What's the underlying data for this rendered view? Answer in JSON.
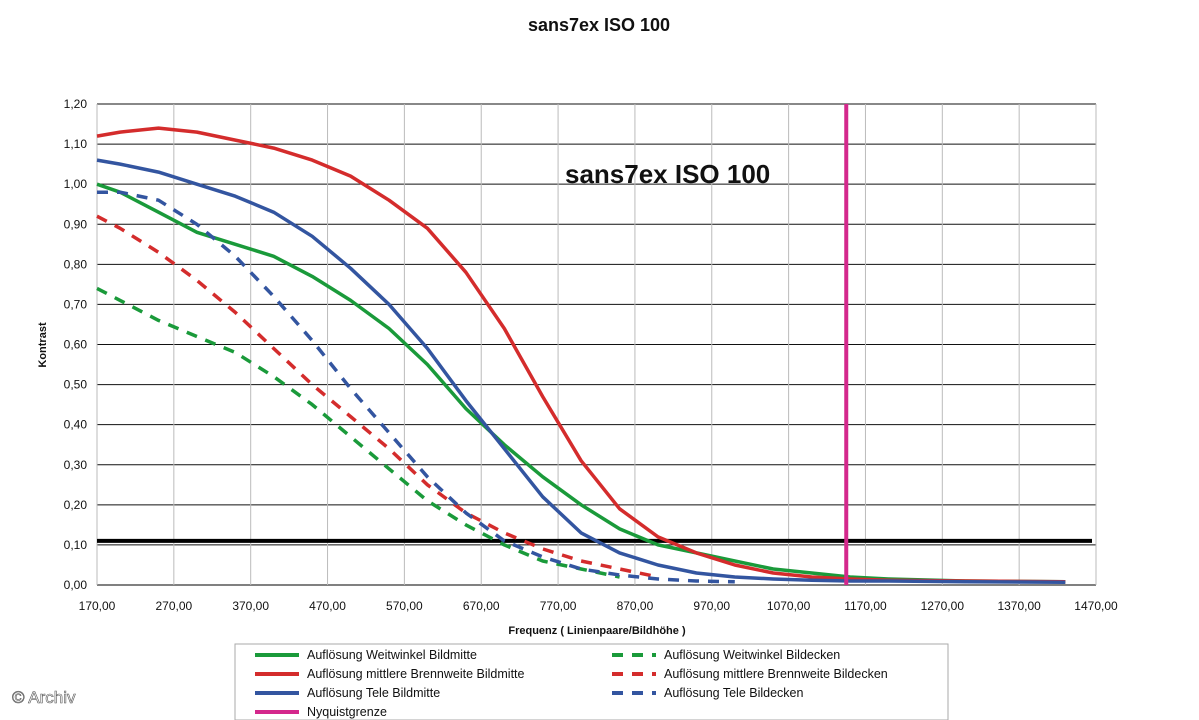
{
  "chart_data": {
    "type": "line",
    "title": "sans7ex ISO 100",
    "annotation": "sans7ex ISO 100",
    "xlabel": "Frequenz ( Linienpaare/Bildhöhe )",
    "ylabel": "Kontrast",
    "xlim": [
      170,
      1470
    ],
    "ylim": [
      0,
      1.2
    ],
    "x_ticks": [
      "170,00",
      "270,00",
      "370,00",
      "470,00",
      "570,00",
      "670,00",
      "770,00",
      "870,00",
      "970,00",
      "1070,00",
      "1170,00",
      "1270,00",
      "1370,00",
      "1470,00"
    ],
    "y_ticks": [
      "0,00",
      "0,10",
      "0,20",
      "0,30",
      "0,40",
      "0,50",
      "0,60",
      "0,70",
      "0,80",
      "0,90",
      "1,00",
      "1,10",
      "1,20"
    ],
    "grid": true,
    "legend_position": "bottom",
    "threshold_line": {
      "y": 0.11,
      "color": "#000000"
    },
    "series": [
      {
        "name": "Auflösung Weitwinkel Bildmitte",
        "color": "#1a9a3a",
        "style": "solid",
        "x": [
          170,
          200,
          250,
          300,
          350,
          400,
          450,
          500,
          550,
          600,
          650,
          700,
          750,
          800,
          850,
          900,
          950,
          1000,
          1050,
          1100,
          1150,
          1200,
          1300,
          1430
        ],
        "y": [
          1.0,
          0.98,
          0.93,
          0.88,
          0.85,
          0.82,
          0.77,
          0.71,
          0.64,
          0.55,
          0.44,
          0.35,
          0.27,
          0.2,
          0.14,
          0.1,
          0.08,
          0.06,
          0.04,
          0.03,
          0.02,
          0.015,
          0.01,
          0.008
        ]
      },
      {
        "name": "Auflösung mittlere Brennweite Bildmitte",
        "color": "#d42c2c",
        "style": "solid",
        "x": [
          170,
          200,
          250,
          300,
          350,
          400,
          450,
          500,
          550,
          600,
          650,
          700,
          750,
          800,
          850,
          900,
          950,
          1000,
          1050,
          1100,
          1150,
          1200,
          1300,
          1430
        ],
        "y": [
          1.12,
          1.13,
          1.14,
          1.13,
          1.11,
          1.09,
          1.06,
          1.02,
          0.96,
          0.89,
          0.78,
          0.64,
          0.47,
          0.31,
          0.19,
          0.12,
          0.08,
          0.05,
          0.03,
          0.02,
          0.015,
          0.012,
          0.01,
          0.008
        ]
      },
      {
        "name": "Auflösung Tele Bildmitte",
        "color": "#3355a0",
        "style": "solid",
        "x": [
          170,
          200,
          250,
          300,
          350,
          400,
          450,
          500,
          550,
          600,
          650,
          700,
          750,
          800,
          850,
          900,
          950,
          1000,
          1050,
          1100,
          1150,
          1200,
          1300,
          1430
        ],
        "y": [
          1.06,
          1.05,
          1.03,
          1.0,
          0.97,
          0.93,
          0.87,
          0.79,
          0.7,
          0.59,
          0.46,
          0.34,
          0.22,
          0.13,
          0.08,
          0.05,
          0.03,
          0.02,
          0.015,
          0.012,
          0.01,
          0.01,
          0.008,
          0.007
        ]
      },
      {
        "name": "Auflösung Weitwinkel Bildecken",
        "color": "#1a9a3a",
        "style": "dashed",
        "x": [
          170,
          200,
          250,
          300,
          350,
          400,
          450,
          500,
          550,
          600,
          650,
          700,
          750,
          800,
          850
        ],
        "y": [
          0.74,
          0.71,
          0.66,
          0.62,
          0.58,
          0.52,
          0.45,
          0.37,
          0.29,
          0.21,
          0.15,
          0.1,
          0.06,
          0.04,
          0.02
        ]
      },
      {
        "name": "Auflösung mittlere Brennweite Bildecken",
        "color": "#d42c2c",
        "style": "dashed",
        "x": [
          170,
          200,
          250,
          300,
          350,
          400,
          450,
          500,
          550,
          600,
          650,
          700,
          750,
          800,
          850,
          900
        ],
        "y": [
          0.92,
          0.89,
          0.83,
          0.76,
          0.68,
          0.59,
          0.5,
          0.42,
          0.34,
          0.25,
          0.18,
          0.13,
          0.09,
          0.06,
          0.04,
          0.02
        ]
      },
      {
        "name": "Auflösung Tele Bildecken",
        "color": "#3355a0",
        "style": "dashed",
        "x": [
          170,
          200,
          250,
          300,
          350,
          400,
          450,
          500,
          550,
          600,
          650,
          700,
          750,
          800,
          850,
          900,
          950,
          1000
        ],
        "y": [
          0.98,
          0.98,
          0.96,
          0.9,
          0.82,
          0.72,
          0.61,
          0.49,
          0.38,
          0.27,
          0.18,
          0.11,
          0.07,
          0.04,
          0.025,
          0.015,
          0.01,
          0.008
        ]
      },
      {
        "name": "Nyquistgrenze",
        "color": "#d4288c",
        "style": "vertical",
        "x_value": 1145
      }
    ]
  },
  "watermark": "© Archiv"
}
